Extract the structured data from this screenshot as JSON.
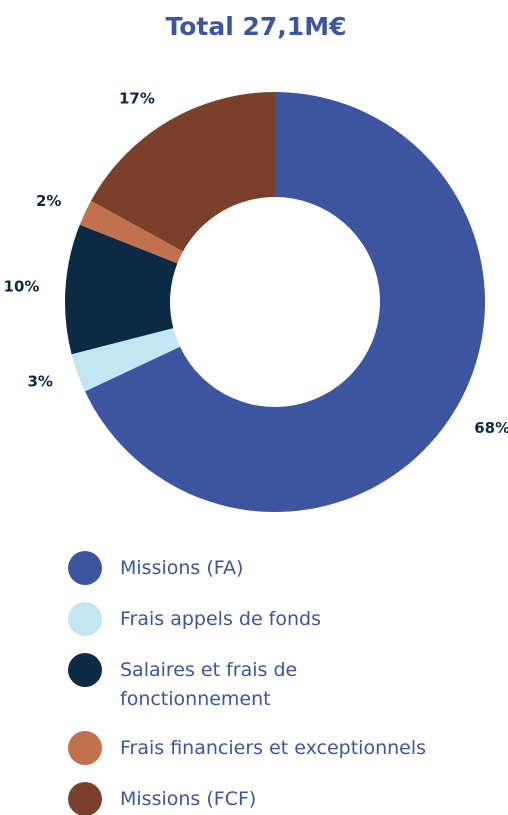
{
  "chart_data": {
    "type": "donut",
    "title": "Total 27,1M€",
    "categories": [
      "Missions (FA)",
      "Frais appels de fonds",
      "Salaires et frais de fonctionnement",
      "Frais financiers et exceptionnels",
      "Missions (FCF)"
    ],
    "values": [
      68,
      3,
      10,
      2,
      17
    ],
    "value_labels": [
      "68%",
      "3%",
      "10%",
      "2%",
      "17%"
    ],
    "colors": [
      "#3d55a0",
      "#c3e6f3",
      "#0c2a43",
      "#c2714e",
      "#7a402b"
    ]
  }
}
